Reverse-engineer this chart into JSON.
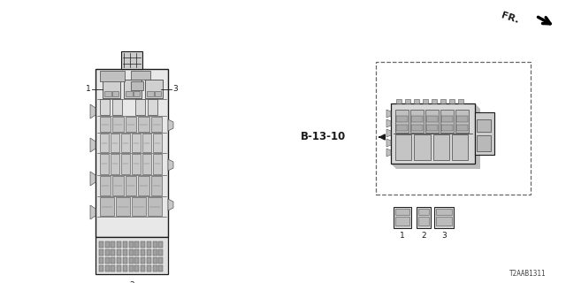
{
  "bg_color": "#ffffff",
  "title_code": "T2AAB1311",
  "fr_label": "FR.",
  "b_label": "B-13-10",
  "fig_width": 6.4,
  "fig_height": 3.2,
  "dpi": 100,
  "line_color": "#1a1a1a",
  "fill_light": "#d8d8d8",
  "fill_mid": "#b0b0b0",
  "fill_dark": "#888888"
}
